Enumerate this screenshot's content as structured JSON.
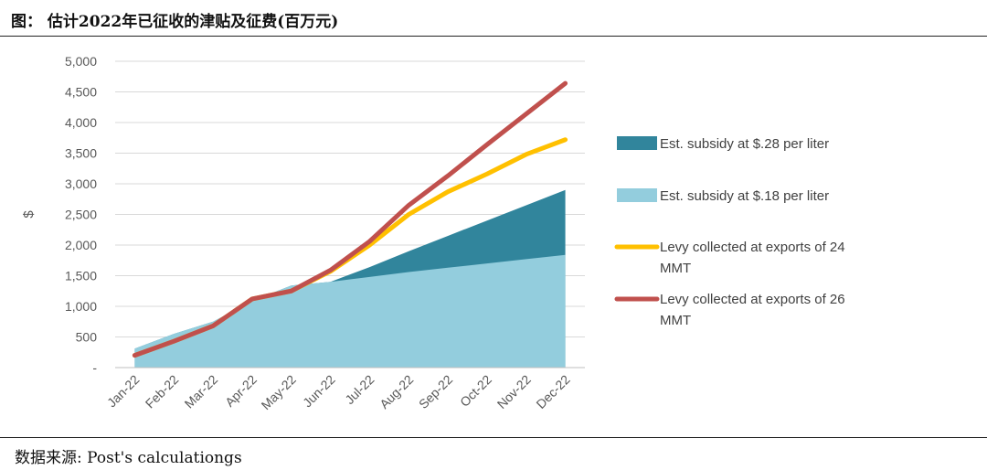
{
  "header": {
    "title": "图：  估计2022年已征收的津贴及征费(百万元)"
  },
  "footer": {
    "source": "数据来源: Post's calculationgs"
  },
  "colors": {
    "subsidy_28": "#31859C",
    "subsidy_18": "#93CDDD",
    "levy_24": "#FFC000",
    "levy_26": "#C0504D",
    "grid": "#D9D9D9",
    "axis": "#BFBFBF"
  },
  "chart_data": {
    "type": "area",
    "title": "",
    "xlabel": "",
    "ylabel": "$",
    "ylim": [
      0,
      5000
    ],
    "yticks": [
      0,
      500,
      1000,
      1500,
      2000,
      2500,
      3000,
      3500,
      4000,
      4500,
      5000
    ],
    "ytick_labels": [
      "-",
      "500",
      "1,000",
      "1,500",
      "2,000",
      "2,500",
      "3,000",
      "3,500",
      "4,000",
      "4,500",
      "5,000"
    ],
    "grid": true,
    "legend_position": "right",
    "categories": [
      "Jan-22",
      "Feb-22",
      "Mar-22",
      "Apr-22",
      "May-22",
      "Jun-22",
      "Jul-22",
      "Aug-22",
      "Sep-22",
      "Oct-22",
      "Nov-22",
      "Dec-22"
    ],
    "series": [
      {
        "name": "Est. subsidy at $.28 per liter",
        "kind": "area",
        "color_key": "subsidy_28",
        "values": [
          310,
          550,
          750,
          1090,
          1340,
          1400,
          1640,
          1900,
          2150,
          2400,
          2650,
          2900
        ]
      },
      {
        "name": "Est. subsidy at $.18 per liter",
        "kind": "area",
        "color_key": "subsidy_18",
        "values": [
          310,
          550,
          750,
          1090,
          1340,
          1400,
          1480,
          1560,
          1630,
          1700,
          1770,
          1840
        ]
      },
      {
        "name": "Levy collected at exports of 24 MMT",
        "kind": "line",
        "color_key": "levy_24",
        "values": [
          200,
          430,
          680,
          1120,
          1250,
          1570,
          2000,
          2500,
          2870,
          3160,
          3480,
          3720
        ]
      },
      {
        "name": "Levy collected at exports of 26 MMT",
        "kind": "line",
        "color_key": "levy_26",
        "values": [
          200,
          430,
          680,
          1120,
          1250,
          1590,
          2060,
          2650,
          3130,
          3640,
          4140,
          4640
        ]
      }
    ]
  }
}
